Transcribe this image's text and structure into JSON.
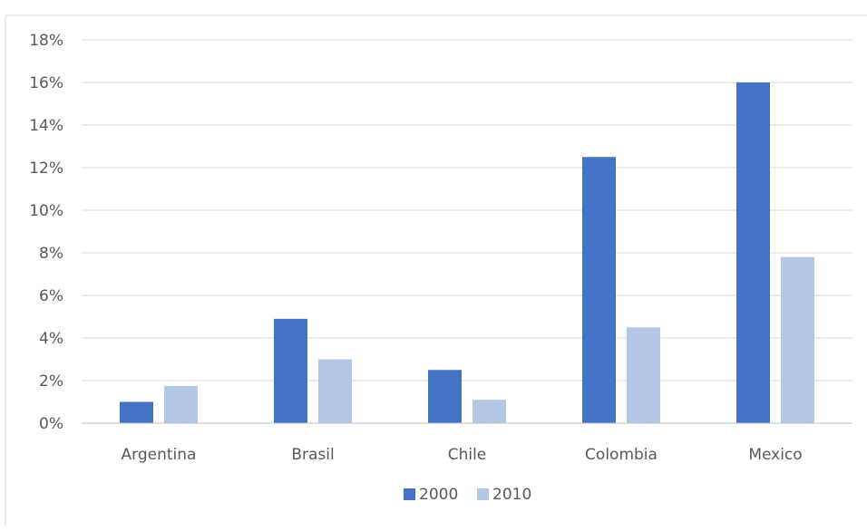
{
  "chart_data": {
    "type": "bar",
    "categories": [
      "Argentina",
      "Brasil",
      "Chile",
      "Colombia",
      "Mexico"
    ],
    "series": [
      {
        "name": "2000",
        "color": "#4472C4",
        "values": [
          1.0,
          4.9,
          2.5,
          12.5,
          16.0
        ]
      },
      {
        "name": "2010",
        "color": "#B4C7E7",
        "values": [
          1.75,
          3.0,
          1.1,
          4.5,
          7.8
        ]
      }
    ],
    "ylim": [
      0,
      18
    ],
    "yticks": [
      "0%",
      "2%",
      "4%",
      "6%",
      "8%",
      "10%",
      "12%",
      "14%",
      "16%",
      "18%"
    ],
    "y_tick_values": [
      0,
      2,
      4,
      6,
      8,
      10,
      12,
      14,
      16,
      18
    ],
    "grid": true,
    "legend": "bottom"
  }
}
